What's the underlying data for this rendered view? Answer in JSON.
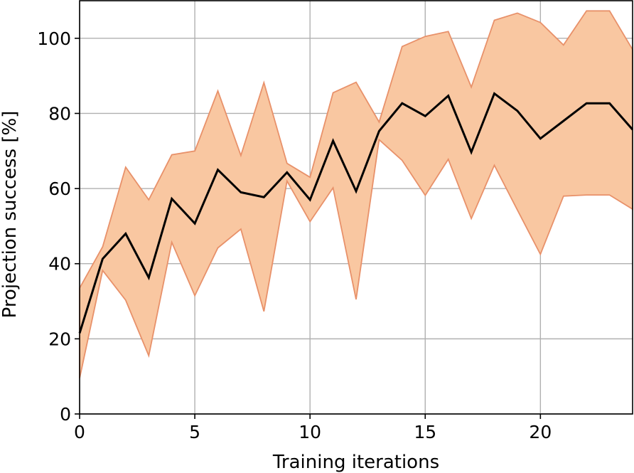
{
  "chart_data": {
    "type": "line",
    "title": "",
    "xlabel": "Training iterations",
    "ylabel": "Projection success [%]",
    "xlim": [
      0,
      24
    ],
    "ylim": [
      0,
      110
    ],
    "xticks": [
      0,
      5,
      10,
      15,
      20
    ],
    "yticks": [
      0,
      20,
      40,
      60,
      80,
      100
    ],
    "grid": true,
    "x": [
      0,
      1,
      2,
      3,
      4,
      5,
      6,
      7,
      8,
      9,
      10,
      11,
      12,
      13,
      14,
      15,
      16,
      17,
      18,
      19,
      20,
      21,
      22,
      23,
      24
    ],
    "series": [
      {
        "values": [
          21.5,
          41.3,
          48.0,
          36.3,
          57.3,
          50.7,
          65.0,
          59.0,
          57.7,
          64.3,
          57.0,
          72.7,
          59.3,
          75.3,
          82.7,
          79.3,
          84.7,
          69.7,
          85.3,
          80.7,
          73.3,
          78.0,
          82.7,
          82.7,
          75.7
        ],
        "color": "#000000"
      }
    ],
    "band": {
      "upper": [
        33.5,
        44.5,
        65.7,
        57.0,
        69.0,
        70.0,
        86.0,
        68.8,
        88.2,
        66.7,
        63.0,
        85.5,
        88.3,
        77.7,
        97.8,
        100.5,
        101.8,
        87.0,
        104.8,
        106.7,
        104.2,
        98.2,
        107.3,
        107.3,
        97.0
      ],
      "lower": [
        9.5,
        38.2,
        30.3,
        15.5,
        45.7,
        31.5,
        44.2,
        49.2,
        27.3,
        62.0,
        51.2,
        60.2,
        30.5,
        73.0,
        67.5,
        58.2,
        67.8,
        52.0,
        66.2,
        54.3,
        42.5,
        58.0,
        58.3,
        58.3,
        54.5
      ],
      "fill_color": "#f9c7a1",
      "edge_color": "#e8916a"
    }
  }
}
